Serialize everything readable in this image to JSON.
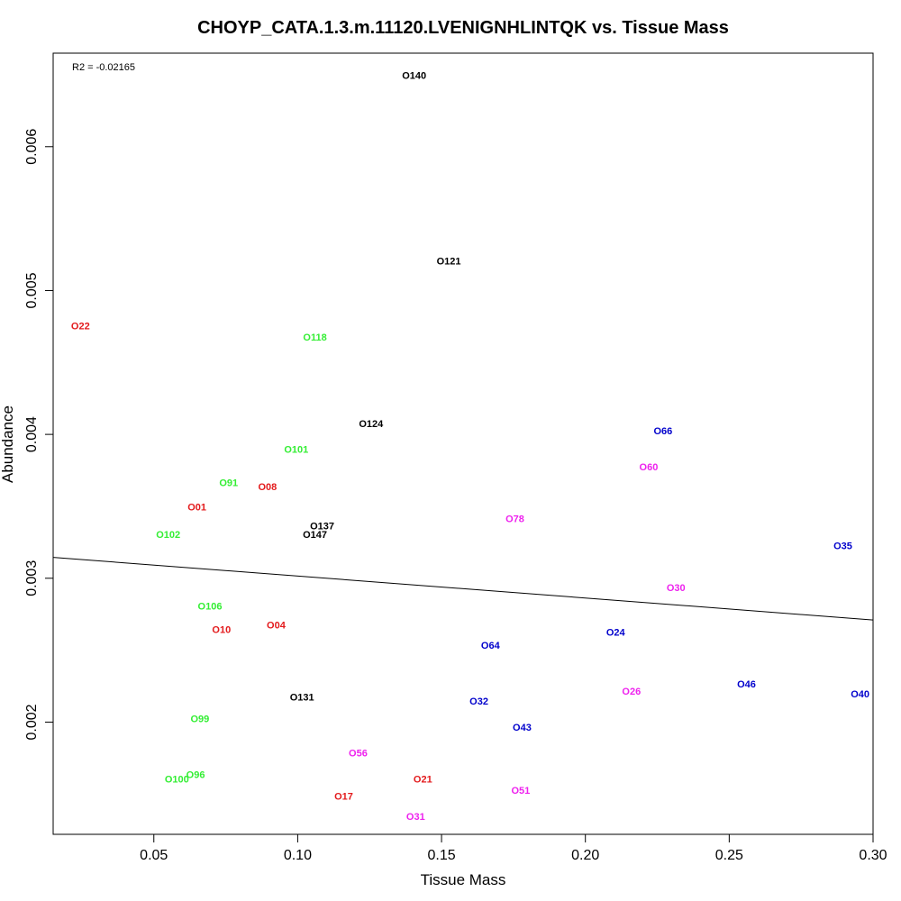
{
  "chart_data": {
    "type": "scatter",
    "title": "CHOYP_CATA.1.3.m.11120.LVENIGNHLINTQK vs. Tissue Mass",
    "xlabel": "Tissue Mass",
    "ylabel": "Abundance",
    "xlim": [
      0.015,
      0.3
    ],
    "ylim": [
      0.00122,
      0.00665
    ],
    "xticks": [
      0.05,
      0.1,
      0.15,
      0.2,
      0.25,
      0.3
    ],
    "xtick_labels": [
      "0.05",
      "0.10",
      "0.15",
      "0.20",
      "0.25",
      "0.30"
    ],
    "yticks": [
      0.002,
      0.003,
      0.004,
      0.005,
      0.006
    ],
    "ytick_labels": [
      "0.002",
      "0.003",
      "0.004",
      "0.005",
      "0.006"
    ],
    "annotation": "R2 = -0.02165",
    "grid": false,
    "regression_line": {
      "x": [
        0.015,
        0.3
      ],
      "y": [
        0.003145,
        0.00271
      ]
    },
    "colors": {
      "red": "#e31a1c",
      "green": "#33ee33",
      "black": "#000000",
      "blue": "#0000cc",
      "magenta": "#ee22ee"
    },
    "points": [
      {
        "label": "O140",
        "x": 0.1405,
        "y": 0.00649,
        "color": "black"
      },
      {
        "label": "O121",
        "x": 0.1525,
        "y": 0.0052,
        "color": "black"
      },
      {
        "label": "O22",
        "x": 0.0245,
        "y": 0.00475,
        "color": "red"
      },
      {
        "label": "O118",
        "x": 0.106,
        "y": 0.00467,
        "color": "green"
      },
      {
        "label": "O124",
        "x": 0.1255,
        "y": 0.00407,
        "color": "black"
      },
      {
        "label": "O66",
        "x": 0.227,
        "y": 0.00402,
        "color": "blue"
      },
      {
        "label": "O101",
        "x": 0.0995,
        "y": 0.00389,
        "color": "green"
      },
      {
        "label": "O60",
        "x": 0.222,
        "y": 0.00377,
        "color": "magenta"
      },
      {
        "label": "O91",
        "x": 0.076,
        "y": 0.00366,
        "color": "green"
      },
      {
        "label": "O08",
        "x": 0.0895,
        "y": 0.00363,
        "color": "red"
      },
      {
        "label": "O01",
        "x": 0.065,
        "y": 0.00349,
        "color": "red"
      },
      {
        "label": "O78",
        "x": 0.1755,
        "y": 0.00341,
        "color": "magenta"
      },
      {
        "label": "O137",
        "x": 0.1085,
        "y": 0.00336,
        "color": "black"
      },
      {
        "label": "O147",
        "x": 0.106,
        "y": 0.0033,
        "color": "black"
      },
      {
        "label": "O102",
        "x": 0.055,
        "y": 0.0033,
        "color": "green"
      },
      {
        "label": "O35",
        "x": 0.2895,
        "y": 0.00322,
        "color": "blue"
      },
      {
        "label": "O30",
        "x": 0.2315,
        "y": 0.00293,
        "color": "magenta"
      },
      {
        "label": "O106",
        "x": 0.0695,
        "y": 0.0028,
        "color": "green"
      },
      {
        "label": "O04",
        "x": 0.0925,
        "y": 0.00267,
        "color": "red"
      },
      {
        "label": "O10",
        "x": 0.0735,
        "y": 0.00264,
        "color": "red"
      },
      {
        "label": "O24",
        "x": 0.2105,
        "y": 0.00262,
        "color": "blue"
      },
      {
        "label": "O64",
        "x": 0.167,
        "y": 0.00253,
        "color": "blue"
      },
      {
        "label": "O46",
        "x": 0.256,
        "y": 0.00226,
        "color": "blue"
      },
      {
        "label": "O26",
        "x": 0.216,
        "y": 0.00221,
        "color": "magenta"
      },
      {
        "label": "O40",
        "x": 0.2955,
        "y": 0.00219,
        "color": "blue"
      },
      {
        "label": "O131",
        "x": 0.1015,
        "y": 0.00217,
        "color": "black"
      },
      {
        "label": "O32",
        "x": 0.163,
        "y": 0.00214,
        "color": "blue"
      },
      {
        "label": "O99",
        "x": 0.066,
        "y": 0.00202,
        "color": "green"
      },
      {
        "label": "O43",
        "x": 0.178,
        "y": 0.00196,
        "color": "blue"
      },
      {
        "label": "O56",
        "x": 0.121,
        "y": 0.00178,
        "color": "magenta"
      },
      {
        "label": "O96",
        "x": 0.0645,
        "y": 0.00163,
        "color": "green"
      },
      {
        "label": "O100",
        "x": 0.058,
        "y": 0.0016,
        "color": "green"
      },
      {
        "label": "O21",
        "x": 0.1435,
        "y": 0.0016,
        "color": "red"
      },
      {
        "label": "O51",
        "x": 0.1775,
        "y": 0.00152,
        "color": "magenta"
      },
      {
        "label": "O17",
        "x": 0.116,
        "y": 0.00148,
        "color": "red"
      },
      {
        "label": "O31",
        "x": 0.141,
        "y": 0.00134,
        "color": "magenta"
      }
    ]
  }
}
